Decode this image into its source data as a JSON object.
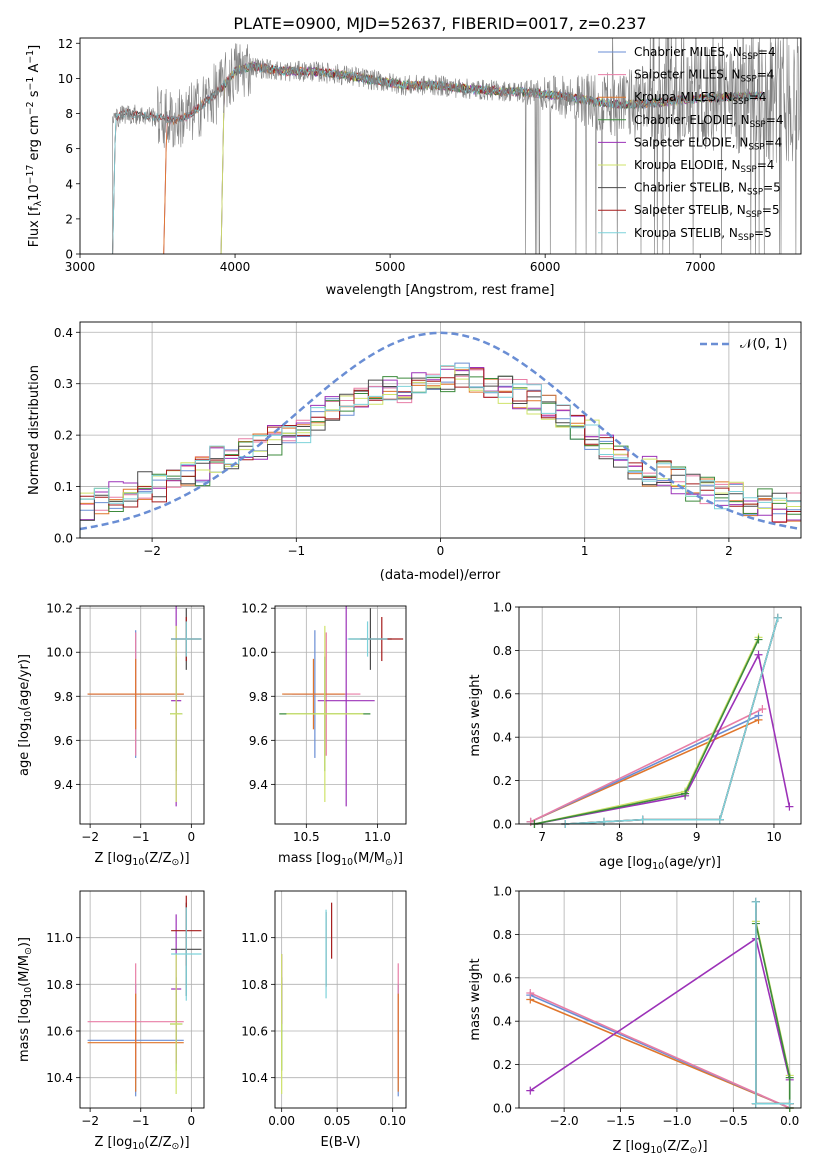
{
  "figure": {
    "title": "PLATE=0900, MJD=52637, FIBERID=0017, z=0.237"
  },
  "colors": {
    "Chabrier MILES": "#6a8ed4",
    "Salpeter MILES": "#e87ea6",
    "Kroupa MILES": "#e0762c",
    "Chabrier ELODIE": "#3d8b3d",
    "Salpeter ELODIE": "#9c32b8",
    "Kroupa ELODIE": "#cfe36a",
    "Chabrier STELIB": "#4a4a4a",
    "Salpeter STELIB": "#a51c1c",
    "Kroupa STELIB": "#7dd2da",
    "data": "#808080",
    "normal": "#6a8ed4"
  },
  "chart_data": [
    {
      "type": "line",
      "title": "PLATE=0900, MJD=52637, FIBERID=0017, z=0.237",
      "xlabel": "wavelength [Angstrom, rest frame]",
      "ylabel": "Flux [f_λ 10^-17 erg cm^-2 s^-1 A^-1]",
      "xlim": [
        3000,
        7650
      ],
      "ylim": [
        0,
        12.3
      ],
      "xticks": [
        "3000",
        "4000",
        "5000",
        "6000",
        "7000"
      ],
      "yticks": [
        "0",
        "2",
        "4",
        "6",
        "8",
        "10",
        "12"
      ],
      "legend_position": "top-right",
      "series": [
        {
          "name": "Chabrier MILES, N_SSP=4",
          "start": 3540
        },
        {
          "name": "Salpeter MILES, N_SSP=4",
          "start": 3540
        },
        {
          "name": "Kroupa MILES, N_SSP=4",
          "start": 3540
        },
        {
          "name": "Chabrier ELODIE, N_SSP=4",
          "start": 3910
        },
        {
          "name": "Salpeter ELODIE, N_SSP=4",
          "start": 3910
        },
        {
          "name": "Kroupa ELODIE, N_SSP=4",
          "start": 3910
        },
        {
          "name": "Chabrier STELIB, N_SSP=5",
          "start": 3210
        },
        {
          "name": "Salpeter STELIB, N_SSP=5",
          "start": 3210
        },
        {
          "name": "Kroupa STELIB, N_SSP=5",
          "start": 3210
        }
      ],
      "continuum": {
        "x": [
          3200,
          3300,
          3400,
          3500,
          3600,
          3700,
          3800,
          3900,
          4000,
          4100,
          4300,
          4500,
          4700,
          4900,
          5100,
          5300,
          5500,
          5700,
          5900,
          6100,
          6300,
          6500,
          6700,
          6900,
          7100,
          7300,
          7400
        ],
        "y": [
          7.7,
          8.0,
          7.9,
          7.8,
          7.6,
          7.9,
          8.6,
          9.3,
          10.4,
          10.7,
          10.4,
          10.4,
          10.2,
          9.9,
          9.6,
          9.6,
          9.4,
          9.3,
          9.2,
          9.0,
          8.7,
          8.5,
          8.6,
          8.8,
          8.9,
          9.0,
          9.0
        ]
      }
    },
    {
      "type": "bar",
      "xlabel": "(data-model)/error",
      "ylabel": "Normed distribution",
      "xlim": [
        -2.5,
        2.5
      ],
      "ylim": [
        0,
        0.42
      ],
      "xticks": [
        "−2",
        "−1",
        "0",
        "1",
        "2"
      ],
      "yticks": [
        "0.0",
        "0.1",
        "0.2",
        "0.3",
        "0.4"
      ],
      "legend": "𝒩(0, 1)",
      "legend_position": "top-right",
      "bins": [
        -2.5,
        2.5,
        50
      ],
      "envelope": [
        0.06,
        0.07,
        0.08,
        0.09,
        0.1,
        0.1,
        0.11,
        0.12,
        0.13,
        0.15,
        0.16,
        0.17,
        0.18,
        0.19,
        0.2,
        0.21,
        0.23,
        0.25,
        0.26,
        0.27,
        0.28,
        0.29,
        0.29,
        0.3,
        0.31,
        0.31,
        0.32,
        0.31,
        0.3,
        0.29,
        0.28,
        0.27,
        0.26,
        0.24,
        0.22,
        0.2,
        0.18,
        0.16,
        0.14,
        0.13,
        0.12,
        0.11,
        0.1,
        0.09,
        0.08,
        0.08,
        0.07,
        0.07,
        0.06,
        0.06
      ]
    },
    {
      "type": "scatter",
      "xlabel": "Z [log10(Z/Z⊙)]",
      "ylabel": "age [log10(age/yr)]",
      "xlim": [
        -2.2,
        0.25
      ],
      "ylim": [
        9.22,
        10.21
      ],
      "xticks": [
        "−2",
        "−1",
        "0"
      ],
      "yticks": [
        "9.4",
        "9.6",
        "9.8",
        "10.0",
        "10.2"
      ],
      "points": [
        {
          "model": "Chabrier MILES",
          "x": -1.1,
          "xerr": 0.95,
          "y": 9.81,
          "yerr": 0.29
        },
        {
          "model": "Salpeter MILES",
          "x": -1.1,
          "xerr": 0.95,
          "y": 9.81,
          "yerr": 0.28
        },
        {
          "model": "Kroupa MILES",
          "x": -1.1,
          "xerr": 0.95,
          "y": 9.81,
          "yerr": 0.16
        },
        {
          "model": "Chabrier ELODIE",
          "x": -0.3,
          "xerr": 0.12,
          "y": 9.72,
          "yerr": 0.26
        },
        {
          "model": "Salpeter ELODIE",
          "x": -0.3,
          "xerr": 0.1,
          "y": 9.78,
          "yerr": 0.48
        },
        {
          "model": "Kroupa ELODIE",
          "x": -0.3,
          "xerr": 0.12,
          "y": 9.72,
          "yerr": 0.4
        },
        {
          "model": "Chabrier STELIB",
          "x": -0.1,
          "xerr": 0.3,
          "y": 10.06,
          "yerr": 0.14
        },
        {
          "model": "Salpeter STELIB",
          "x": -0.1,
          "xerr": 0.3,
          "y": 10.06,
          "yerr": 0.1
        },
        {
          "model": "Kroupa STELIB",
          "x": -0.1,
          "xerr": 0.3,
          "y": 10.06,
          "yerr": 0.08
        }
      ]
    },
    {
      "type": "scatter",
      "xlabel": "mass [log10(M/M⊙)]",
      "ylabel": "",
      "xlim": [
        10.28,
        11.2
      ],
      "ylim": [
        9.22,
        10.21
      ],
      "xticks": [
        "10.5",
        "11.0"
      ],
      "yticks": [
        "9.4",
        "9.6",
        "9.8",
        "10.0",
        "10.2"
      ],
      "points": [
        {
          "model": "Chabrier MILES",
          "x": 10.56,
          "xerr": 0.22,
          "y": 9.81,
          "yerr": 0.29
        },
        {
          "model": "Salpeter MILES",
          "x": 10.64,
          "xerr": 0.24,
          "y": 9.81,
          "yerr": 0.28
        },
        {
          "model": "Kroupa MILES",
          "x": 10.55,
          "xerr": 0.22,
          "y": 9.81,
          "yerr": 0.16
        },
        {
          "model": "Chabrier ELODIE",
          "x": 10.63,
          "xerr": 0.32,
          "y": 9.72,
          "yerr": 0.26
        },
        {
          "model": "Salpeter ELODIE",
          "x": 10.78,
          "xerr": 0.2,
          "y": 9.78,
          "yerr": 0.48
        },
        {
          "model": "Kroupa ELODIE",
          "x": 10.63,
          "xerr": 0.27,
          "y": 9.72,
          "yerr": 0.4
        },
        {
          "model": "Chabrier STELIB",
          "x": 10.95,
          "xerr": 0.15,
          "y": 10.06,
          "yerr": 0.14
        },
        {
          "model": "Salpeter STELIB",
          "x": 11.03,
          "xerr": 0.15,
          "y": 10.06,
          "yerr": 0.1
        },
        {
          "model": "Kroupa STELIB",
          "x": 10.93,
          "xerr": 0.14,
          "y": 10.06,
          "yerr": 0.08
        }
      ]
    },
    {
      "type": "line",
      "xlabel": "age [log10(age/yr)]",
      "ylabel": "mass weight",
      "xlim": [
        6.7,
        10.35
      ],
      "ylim": [
        0,
        1.0
      ],
      "xticks": [
        "7",
        "8",
        "9",
        "10"
      ],
      "yticks": [
        "0.0",
        "0.2",
        "0.4",
        "0.6",
        "0.8",
        "1.0"
      ],
      "series": [
        {
          "name": "Kroupa MILES",
          "x": [
            6.85,
            9.8
          ],
          "y": [
            0.01,
            0.48
          ]
        },
        {
          "name": "Chabrier MILES",
          "x": [
            6.85,
            9.8
          ],
          "y": [
            0.01,
            0.5
          ]
        },
        {
          "name": "Salpeter MILES",
          "x": [
            6.85,
            9.85
          ],
          "y": [
            0.01,
            0.53
          ]
        },
        {
          "name": "Salpeter ELODIE",
          "x": [
            6.9,
            8.85,
            9.8,
            10.2
          ],
          "y": [
            0.0,
            0.13,
            0.78,
            0.08
          ]
        },
        {
          "name": "Kroupa ELODIE",
          "x": [
            6.9,
            8.85,
            9.8
          ],
          "y": [
            0.0,
            0.15,
            0.86
          ]
        },
        {
          "name": "Chabrier ELODIE",
          "x": [
            6.9,
            8.85,
            9.8
          ],
          "y": [
            0.0,
            0.14,
            0.85
          ]
        },
        {
          "name": "Chabrier STELIB",
          "x": [
            7.3,
            7.8,
            8.3,
            9.3,
            10.05
          ],
          "y": [
            0.0,
            0.01,
            0.02,
            0.02,
            0.95
          ]
        },
        {
          "name": "Salpeter STELIB",
          "x": [
            7.3,
            7.8,
            8.3,
            9.3,
            10.05
          ],
          "y": [
            0.0,
            0.01,
            0.02,
            0.02,
            0.95
          ]
        },
        {
          "name": "Kroupa STELIB",
          "x": [
            7.3,
            7.8,
            8.3,
            9.3,
            10.05
          ],
          "y": [
            0.0,
            0.01,
            0.02,
            0.02,
            0.95
          ]
        }
      ]
    },
    {
      "type": "scatter",
      "xlabel": "Z [log10(Z/Z⊙)]",
      "ylabel": "mass [log10(M/M⊙)]",
      "xlim": [
        -2.2,
        0.25
      ],
      "ylim": [
        10.27,
        11.2
      ],
      "xticks": [
        "−2",
        "−1",
        "0"
      ],
      "yticks": [
        "10.4",
        "10.6",
        "10.8",
        "11.0"
      ],
      "points": [
        {
          "model": "Chabrier MILES",
          "x": -1.1,
          "xerr": 0.95,
          "y": 10.56,
          "yerr": 0.24
        },
        {
          "model": "Salpeter MILES",
          "x": -1.1,
          "xerr": 0.95,
          "y": 10.64,
          "yerr": 0.25
        },
        {
          "model": "Kroupa MILES",
          "x": -1.1,
          "xerr": 0.95,
          "y": 10.55,
          "yerr": 0.21
        },
        {
          "model": "Chabrier ELODIE",
          "x": -0.3,
          "xerr": 0.12,
          "y": 10.63,
          "yerr": 0.2
        },
        {
          "model": "Salpeter ELODIE",
          "x": -0.3,
          "xerr": 0.1,
          "y": 10.78,
          "yerr": 0.32
        },
        {
          "model": "Kroupa ELODIE",
          "x": -0.3,
          "xerr": 0.12,
          "y": 10.63,
          "yerr": 0.3
        },
        {
          "model": "Chabrier STELIB",
          "x": -0.1,
          "xerr": 0.3,
          "y": 10.95,
          "yerr": 0.2
        },
        {
          "model": "Salpeter STELIB",
          "x": -0.1,
          "xerr": 0.3,
          "y": 11.03,
          "yerr": 0.15
        },
        {
          "model": "Kroupa STELIB",
          "x": -0.1,
          "xerr": 0.3,
          "y": 10.93,
          "yerr": 0.2
        }
      ]
    },
    {
      "type": "scatter",
      "xlabel": "E(B-V)",
      "ylabel": "",
      "xlim": [
        -0.006,
        0.112
      ],
      "ylim": [
        10.27,
        11.2
      ],
      "xticks": [
        "0.00",
        "0.05",
        "0.10"
      ],
      "yticks": [
        "10.4",
        "10.6",
        "10.8",
        "11.0"
      ],
      "points": [
        {
          "model": "Chabrier MILES",
          "x": 0.105,
          "y": 10.56,
          "yerr": 0.24
        },
        {
          "model": "Salpeter MILES",
          "x": 0.105,
          "y": 10.64,
          "yerr": 0.25
        },
        {
          "model": "Kroupa MILES",
          "x": 0.105,
          "y": 10.55,
          "yerr": 0.21
        },
        {
          "model": "Chabrier ELODIE",
          "x": 0.0,
          "y": 10.63,
          "yerr": 0.2
        },
        {
          "model": "Salpeter ELODIE",
          "x": 0.0,
          "y": 10.78,
          "yerr": 0.15
        },
        {
          "model": "Kroupa ELODIE",
          "x": 0.0,
          "y": 10.63,
          "yerr": 0.3
        },
        {
          "model": "Chabrier STELIB",
          "x": 0.04,
          "y": 10.95,
          "yerr": 0.16
        },
        {
          "model": "Salpeter STELIB",
          "x": 0.045,
          "y": 11.03,
          "yerr": 0.12
        },
        {
          "model": "Kroupa STELIB",
          "x": 0.04,
          "y": 10.93,
          "yerr": 0.19
        }
      ]
    },
    {
      "type": "line",
      "xlabel": "Z [log10(Z/Z⊙)]",
      "ylabel": "mass weight",
      "xlim": [
        -2.4,
        0.1
      ],
      "ylim": [
        0,
        1.0
      ],
      "xticks": [
        "−2.0",
        "−1.5",
        "−1.0",
        "−0.5",
        "0.0"
      ],
      "yticks": [
        "0.0",
        "0.2",
        "0.4",
        "0.6",
        "0.8",
        "1.0"
      ],
      "series": [
        {
          "name": "Kroupa MILES",
          "x": [
            -2.3,
            0.0
          ],
          "y": [
            0.5,
            0.0
          ]
        },
        {
          "name": "Chabrier MILES",
          "x": [
            -2.3,
            0.0
          ],
          "y": [
            0.52,
            0.0
          ]
        },
        {
          "name": "Salpeter MILES",
          "x": [
            -2.3,
            0.0
          ],
          "y": [
            0.53,
            0.0
          ]
        },
        {
          "name": "Salpeter ELODIE",
          "x": [
            -2.3,
            -0.3,
            0.0
          ],
          "y": [
            0.08,
            0.78,
            0.13
          ]
        },
        {
          "name": "Kroupa ELODIE",
          "x": [
            -0.3,
            0.0,
            0.0
          ],
          "y": [
            0.86,
            0.15,
            0.0
          ]
        },
        {
          "name": "Chabrier ELODIE",
          "x": [
            -0.3,
            0.0,
            0.0
          ],
          "y": [
            0.85,
            0.14,
            0.0
          ]
        },
        {
          "name": "Chabrier STELIB",
          "x": [
            -0.3,
            -0.3,
            0.0
          ],
          "y": [
            0.95,
            0.02,
            0.02
          ]
        },
        {
          "name": "Salpeter STELIB",
          "x": [
            -0.3,
            -0.3,
            0.0
          ],
          "y": [
            0.95,
            0.02,
            0.02
          ]
        },
        {
          "name": "Kroupa STELIB",
          "x": [
            -0.3,
            -0.3,
            0.0
          ],
          "y": [
            0.95,
            0.02,
            0.02
          ]
        }
      ]
    }
  ]
}
